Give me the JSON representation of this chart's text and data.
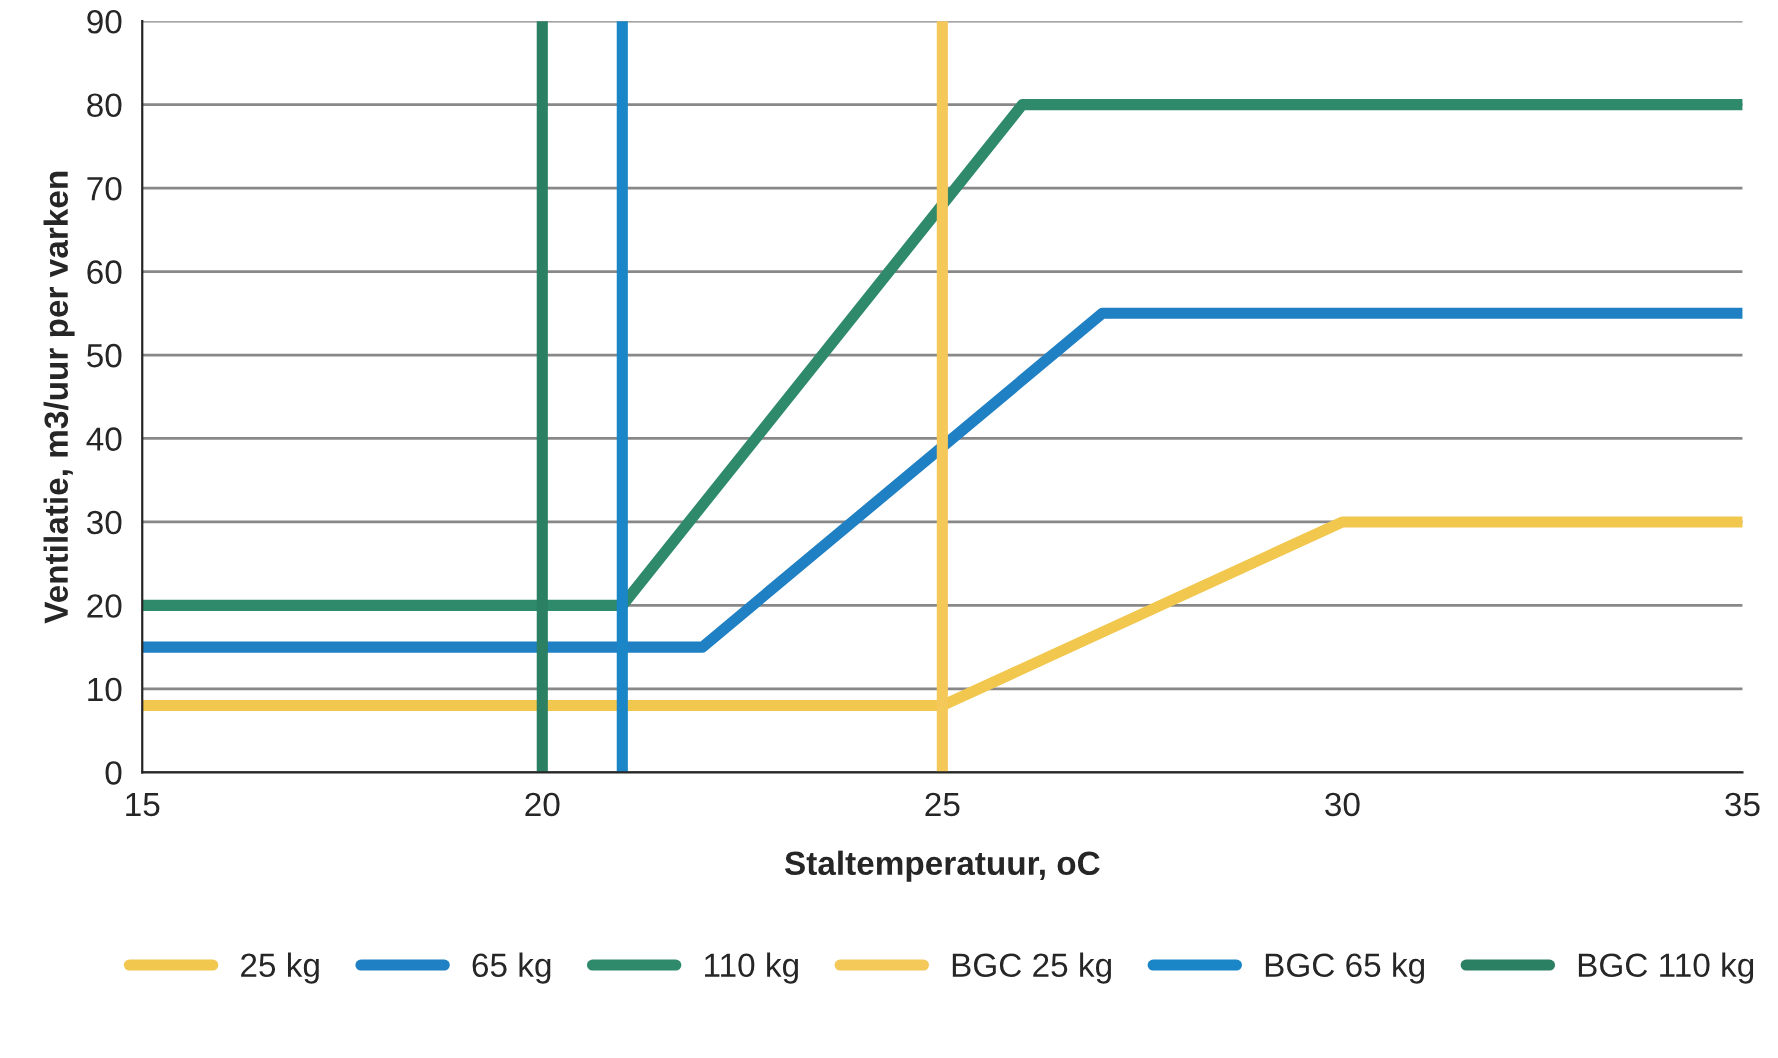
{
  "chart_data": {
    "type": "line",
    "xlabel": "Staltemperatuur, oC",
    "ylabel": "Ventilatie, m3/uur per varken",
    "xlim": [
      15,
      35
    ],
    "ylim": [
      0,
      90
    ],
    "xticks": [
      15,
      20,
      25,
      30,
      35
    ],
    "yticks": [
      0,
      10,
      20,
      30,
      40,
      50,
      60,
      70,
      80,
      90
    ],
    "grid": "y",
    "legend": "bottom",
    "marker": "none",
    "line_style": "solid",
    "series": [
      {
        "name": "25 kg",
        "color": "#f2c74e",
        "x": [
          15,
          25,
          30,
          35
        ],
        "values": [
          8,
          8,
          30,
          30
        ]
      },
      {
        "name": "65 kg",
        "color": "#1f80c4",
        "x": [
          15,
          22,
          27,
          35
        ],
        "values": [
          15,
          15,
          55,
          55
        ]
      },
      {
        "name": "110 kg",
        "color": "#2f8a6c",
        "x": [
          15,
          21,
          26,
          35
        ],
        "values": [
          20,
          20,
          80,
          80
        ]
      },
      {
        "name": "BGC 25 kg",
        "color": "#f5c85a",
        "x": [
          25,
          25
        ],
        "values": [
          0,
          90
        ]
      },
      {
        "name": "BGC 65 kg",
        "color": "#1a86c8",
        "x": [
          21,
          21
        ],
        "values": [
          0,
          90
        ]
      },
      {
        "name": "BGC 110 kg",
        "color": "#2b7f63",
        "x": [
          20,
          20
        ],
        "values": [
          0,
          90
        ]
      }
    ]
  }
}
